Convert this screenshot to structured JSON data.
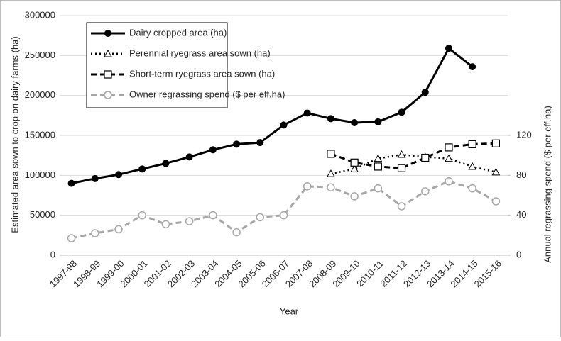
{
  "chart_data": {
    "type": "line",
    "x_label": "Year",
    "y_label": "Estimated area sown to crop on dairy farms (ha)",
    "y2_label": "Annual regrassing spend ($ per eff.ha)",
    "categories": [
      "1997-98",
      "1998-99",
      "1999-00",
      "2000-01",
      "2001-02",
      "2002-03",
      "2003-04",
      "2004-05",
      "2005-06",
      "2006-07",
      "2007-08",
      "2008-09",
      "2009-10",
      "2010-11",
      "2011-12",
      "2012-13",
      "2013-14",
      "2014-15",
      "2015-16"
    ],
    "series": [
      {
        "name": "Dairy cropped area (ha)",
        "color": "#000000",
        "dash": "solid",
        "marker": "filled-circle",
        "values": [
          90000,
          96000,
          101000,
          108000,
          115000,
          123000,
          132000,
          139000,
          141000,
          163000,
          178000,
          171000,
          166000,
          167000,
          179000,
          204000,
          259000,
          236000,
          null
        ]
      },
      {
        "name": "Perennial ryegrass area sown (ha)",
        "color": "#000000",
        "dash": "dotted",
        "marker": "triangle",
        "values": [
          null,
          null,
          null,
          null,
          null,
          null,
          null,
          null,
          null,
          null,
          null,
          102000,
          108000,
          121000,
          126000,
          123000,
          121000,
          111000,
          104000
        ]
      },
      {
        "name": "Short-term ryegrass area sown (ha)",
        "color": "#000000",
        "dash": "dashed",
        "marker": "square",
        "values": [
          null,
          null,
          null,
          null,
          null,
          null,
          null,
          null,
          null,
          null,
          null,
          127000,
          116000,
          111000,
          109000,
          122000,
          135000,
          139000,
          140000
        ]
      },
      {
        "name": "Owner regrassing spend ($ per eff.ha)",
        "color": "#a6a6a6",
        "dash": "dashed",
        "marker": "circle",
        "axis": "y2",
        "values": [
          17,
          22,
          26,
          40,
          31,
          34,
          40,
          23,
          38,
          40,
          69,
          68,
          59,
          67,
          49,
          64,
          74,
          67,
          54
        ]
      }
    ],
    "ylim": [
      0,
      300000
    ],
    "yticks": [
      0,
      50000,
      100000,
      150000,
      200000,
      250000,
      300000
    ],
    "y2lim": [
      0,
      240
    ],
    "y2ticks": [
      0,
      40,
      80,
      120
    ],
    "grid": true,
    "legend": "top-left"
  }
}
